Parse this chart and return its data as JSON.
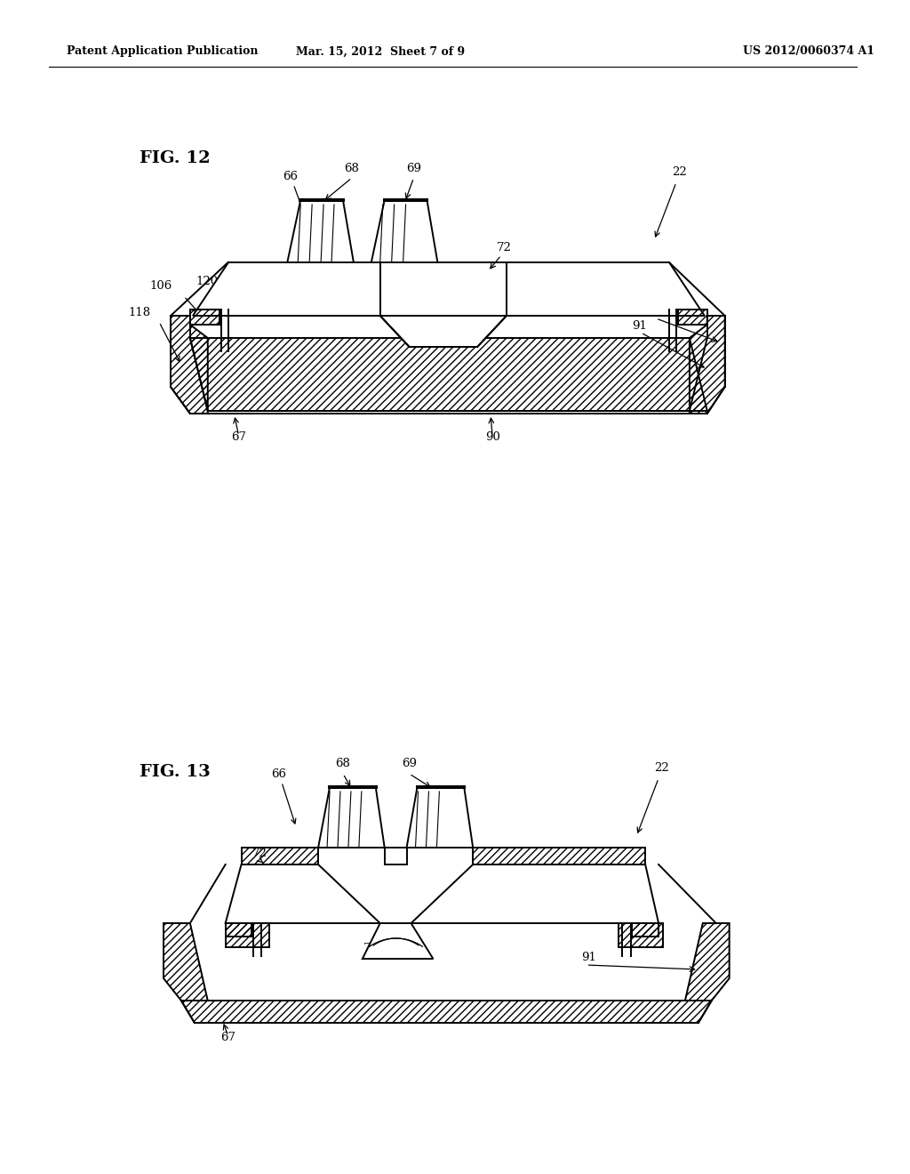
{
  "header_left": "Patent Application Publication",
  "header_mid": "Mar. 15, 2012  Sheet 7 of 9",
  "header_right": "US 2012/0060374 A1",
  "fig12_label": "FIG. 12",
  "fig13_label": "FIG. 13",
  "bg_color": "#ffffff",
  "lc": "#000000"
}
